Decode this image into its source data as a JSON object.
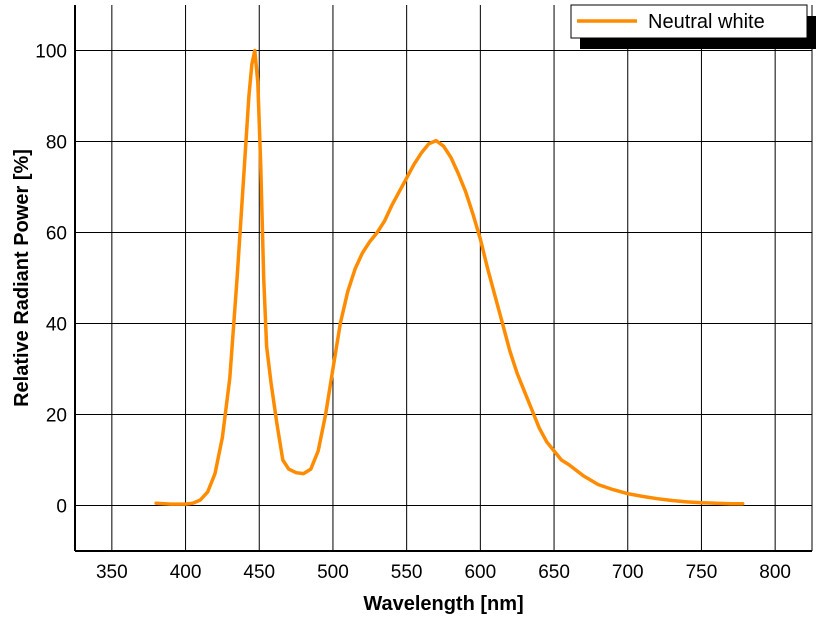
{
  "chart_data": {
    "type": "line",
    "title": "",
    "xlabel": "Wavelength [nm]",
    "ylabel": "Relative Radiant Power [%]",
    "xlim": [
      325,
      825
    ],
    "ylim": [
      -10,
      110
    ],
    "xticks": [
      350,
      400,
      450,
      500,
      550,
      600,
      650,
      700,
      750,
      800
    ],
    "yticks": [
      0,
      20,
      40,
      60,
      80,
      100
    ],
    "grid": true,
    "legend_position": "top-right",
    "series": [
      {
        "name": "Neutral white",
        "color": "#FF8C00",
        "x": [
          380,
          390,
          400,
          405,
          410,
          415,
          420,
          425,
          430,
          435,
          440,
          443,
          445,
          447,
          449,
          451,
          453,
          455,
          458,
          462,
          466,
          470,
          475,
          480,
          485,
          490,
          495,
          500,
          505,
          510,
          515,
          520,
          525,
          530,
          535,
          540,
          545,
          550,
          555,
          560,
          565,
          570,
          575,
          580,
          585,
          590,
          595,
          600,
          605,
          610,
          615,
          620,
          625,
          630,
          635,
          640,
          645,
          650,
          655,
          660,
          670,
          680,
          690,
          700,
          710,
          720,
          730,
          740,
          750,
          760,
          770,
          778
        ],
        "y": [
          0.5,
          0.3,
          0.3,
          0.5,
          1.2,
          3,
          7,
          15,
          28,
          50,
          75,
          90,
          97,
          100,
          93,
          75,
          50,
          35,
          27,
          18,
          10,
          8,
          7.2,
          7,
          8,
          12,
          20,
          30,
          40,
          47,
          52,
          55.5,
          58,
          60,
          62.5,
          66,
          69,
          72,
          75,
          77.5,
          79.5,
          80.2,
          79,
          76.5,
          73,
          69,
          64,
          58.5,
          52,
          46,
          40,
          34,
          29,
          25,
          21,
          17,
          14,
          12,
          10,
          9,
          6.5,
          4.6,
          3.5,
          2.6,
          2.0,
          1.5,
          1.1,
          0.8,
          0.6,
          0.5,
          0.4,
          0.4
        ]
      }
    ]
  }
}
